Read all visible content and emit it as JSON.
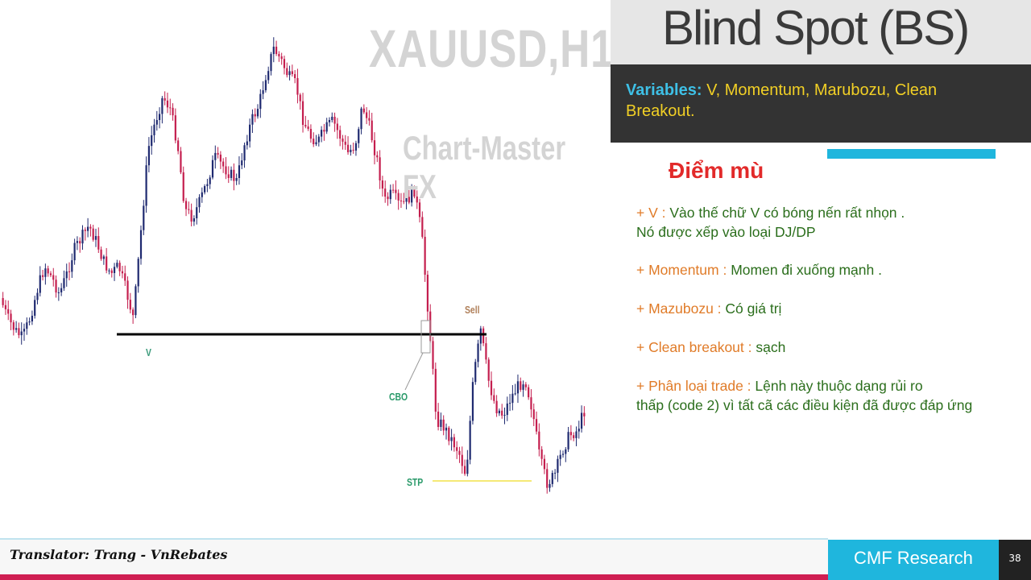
{
  "title": "Blind Spot (BS)",
  "variables": {
    "label": "Variables:",
    "text": " V, Momentum, Marubozu, Clean Breakout."
  },
  "section_title": "Điểm mù",
  "rules": [
    {
      "key": "+ V :",
      "text": " Vào thế chữ V có bóng nến rất nhọn .",
      "text2": "Nó được xếp vào loại DJ/DP"
    },
    {
      "key": "+ Momentum :",
      "text": " Momen đi xuống mạnh ."
    },
    {
      "key": "+ Mazubozu :",
      "text": " Có giá trị"
    },
    {
      "key": "+ Clean breakout :",
      "text": " sạch"
    },
    {
      "key": "+ Phân loại trade :",
      "text": " Lệnh này thuộc dạng rủi ro",
      "text2": "thấp (code 2) vì tất cã các điều kiện đã được đáp ứng"
    }
  ],
  "footer": {
    "translator": "Translator: Trang - VnRebates",
    "brand": "CMF Research",
    "page_number": "38"
  },
  "colors": {
    "bull_candle": "#1f2a70",
    "bear_candle": "#c41e4e",
    "support_line": "#000000",
    "stop_line": "#f2e24a",
    "accent_cyan": "#1fb6dd",
    "accent_red": "#cf1e52"
  },
  "chart_data": {
    "type": "candlestick",
    "watermark_symbol": "XAUUSD,H1",
    "watermark_brand": "Chart-Master FX",
    "price_path": [
      370,
      395,
      410,
      420,
      395,
      360,
      330,
      345,
      365,
      340,
      310,
      295,
      280,
      300,
      325,
      340,
      330,
      360,
      395,
      290,
      185,
      150,
      120,
      135,
      180,
      260,
      270,
      250,
      225,
      195,
      205,
      215,
      225,
      180,
      150,
      130,
      90,
      60,
      75,
      95,
      105,
      150,
      170,
      175,
      160,
      150,
      170,
      190,
      180,
      130,
      160,
      200,
      250,
      240,
      255,
      250,
      235,
      290,
      400,
      520,
      530,
      545,
      560,
      590,
      470,
      410,
      470,
      505,
      515,
      495,
      480,
      470,
      510,
      570,
      600,
      590,
      560,
      540,
      535,
      510
    ],
    "annotations": [
      {
        "label": "V",
        "index": 20
      },
      {
        "label": "CBO",
        "index": 59
      },
      {
        "label": "Sell",
        "index": 64
      },
      {
        "label": "STP",
        "index": 63
      }
    ],
    "support_level": 415,
    "stop_level": 597
  }
}
